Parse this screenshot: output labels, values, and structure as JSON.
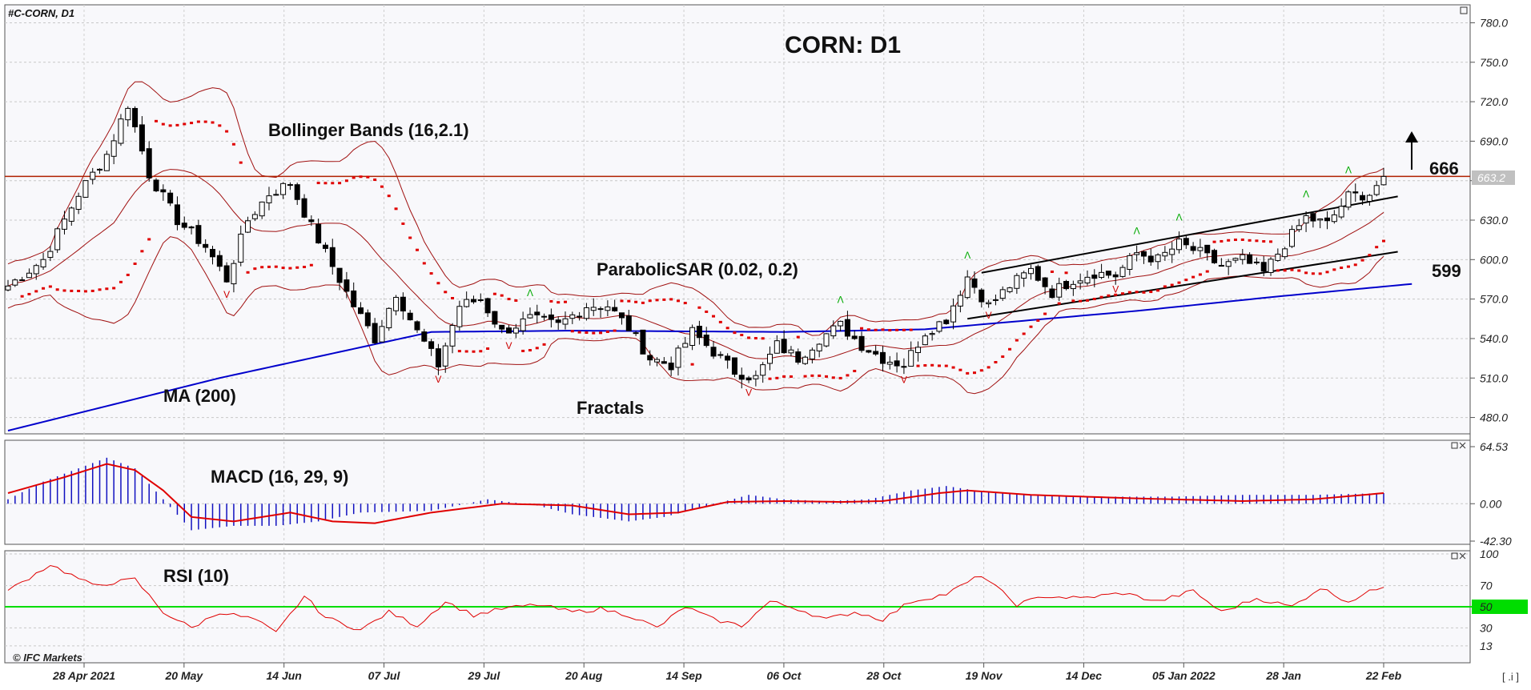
{
  "window": {
    "symbol_label": "#C-CORN, D1",
    "watermark": "© IFC Markets",
    "corner_label": "[ .i ]"
  },
  "annotations": {
    "title": "CORN: D1",
    "bollinger": "Bollinger Bands (16,2.1)",
    "sar": "ParabolicSAR (0.02, 0.2)",
    "ma": "MA (200)",
    "fractals": "Fractals",
    "macd": "MACD (16, 29, 9)",
    "rsi": "RSI (10)",
    "level_high": "666",
    "level_low": "599",
    "price_tag": "663.2"
  },
  "colors": {
    "candle_up": "#ffffff",
    "candle_down": "#000000",
    "bollinger": "#a01010",
    "sar": "#e00000",
    "ma200": "#0000cc",
    "macd_hist": "#1010c0",
    "macd_signal": "#e00000",
    "rsi_line": "#e00000",
    "rsi_50": "#00dd00",
    "resistance": "#b02000",
    "fractal_up": "#00aa00",
    "fractal_down": "#cc0000",
    "price_tag_bg": "#c0c0c0"
  },
  "chart_data": [
    {
      "type": "candlestick",
      "title": "CORN: D1",
      "symbol": "#C-CORN",
      "timeframe": "D1",
      "ylim": [
        470,
        790
      ],
      "y_ticks": [
        "780.0",
        "750.0",
        "720.0",
        "690.0",
        "660.0",
        "630.0",
        "600.0",
        "570.0",
        "540.0",
        "510.0",
        "480.0"
      ],
      "x_tick_labels": [
        "28 Apr 2021",
        "20 May",
        "14 Jun",
        "07 Jul",
        "29 Jul",
        "20 Aug",
        "14 Sep",
        "06 Oct",
        "28 Oct",
        "19 Nov",
        "14 Dec",
        "05 Jan 2022",
        "28 Jan",
        "22 Feb"
      ],
      "close_anchors": [
        [
          0,
          580
        ],
        [
          5,
          600
        ],
        [
          10,
          650
        ],
        [
          14,
          680
        ],
        [
          17,
          718
        ],
        [
          20,
          665
        ],
        [
          24,
          630
        ],
        [
          28,
          610
        ],
        [
          31,
          585
        ],
        [
          34,
          630
        ],
        [
          37,
          650
        ],
        [
          40,
          658
        ],
        [
          43,
          625
        ],
        [
          46,
          595
        ],
        [
          49,
          565
        ],
        [
          52,
          540
        ],
        [
          55,
          575
        ],
        [
          58,
          545
        ],
        [
          61,
          520
        ],
        [
          64,
          565
        ],
        [
          67,
          570
        ],
        [
          70,
          545
        ],
        [
          74,
          555
        ],
        [
          78,
          550
        ],
        [
          82,
          565
        ],
        [
          85,
          565
        ],
        [
          88,
          548
        ],
        [
          91,
          525
        ],
        [
          94,
          520
        ],
        [
          97,
          545
        ],
        [
          100,
          530
        ],
        [
          103,
          515
        ],
        [
          106,
          510
        ],
        [
          109,
          535
        ],
        [
          112,
          525
        ],
        [
          115,
          540
        ],
        [
          118,
          550
        ],
        [
          121,
          535
        ],
        [
          124,
          525
        ],
        [
          127,
          520
        ],
        [
          130,
          545
        ],
        [
          133,
          555
        ],
        [
          136,
          587
        ],
        [
          139,
          565
        ],
        [
          142,
          580
        ],
        [
          145,
          592
        ],
        [
          148,
          575
        ],
        [
          151,
          585
        ],
        [
          154,
          590
        ],
        [
          157,
          588
        ],
        [
          160,
          605
        ],
        [
          163,
          600
        ],
        [
          166,
          612
        ],
        [
          169,
          605
        ],
        [
          172,
          595
        ],
        [
          175,
          600
        ],
        [
          178,
          590
        ],
        [
          181,
          612
        ],
        [
          184,
          632
        ],
        [
          187,
          627
        ],
        [
          190,
          648
        ],
        [
          193,
          650
        ],
        [
          195,
          663.2
        ]
      ],
      "series": [
        {
          "name": "MA (200)",
          "anchors": [
            [
              0,
              470
            ],
            [
              30,
              510
            ],
            [
              60,
              545
            ],
            [
              80,
              546
            ],
            [
              110,
              545
            ],
            [
              130,
              547
            ],
            [
              160,
              561
            ],
            [
              180,
              572
            ],
            [
              200,
              582
            ]
          ]
        },
        {
          "name": "Bollinger Bands (16,2.1)"
        },
        {
          "name": "ParabolicSAR (0.02, 0.2)"
        },
        {
          "name": "Fractals"
        }
      ],
      "price_levels": [
        {
          "label": "666",
          "value": 666,
          "direction": "up"
        },
        {
          "label": "599",
          "value": 599
        }
      ],
      "resistance_line": 663.2,
      "last_price": 663.2
    },
    {
      "type": "line",
      "title": "MACD (16, 29, 9)",
      "y_ticks": [
        "64.53",
        "0.00",
        "-42.30"
      ],
      "ylim": [
        -42.3,
        64.53
      ],
      "histogram_anchors": [
        [
          0,
          5
        ],
        [
          5,
          25
        ],
        [
          10,
          40
        ],
        [
          14,
          52
        ],
        [
          18,
          40
        ],
        [
          22,
          5
        ],
        [
          26,
          -30
        ],
        [
          32,
          -25
        ],
        [
          38,
          -25
        ],
        [
          44,
          -20
        ],
        [
          50,
          -10
        ],
        [
          60,
          -8
        ],
        [
          68,
          5
        ],
        [
          75,
          -2
        ],
        [
          80,
          -12
        ],
        [
          88,
          -20
        ],
        [
          93,
          -15
        ],
        [
          98,
          -5
        ],
        [
          105,
          10
        ],
        [
          110,
          5
        ],
        [
          116,
          3
        ],
        [
          122,
          5
        ],
        [
          128,
          15
        ],
        [
          133,
          20
        ],
        [
          138,
          14
        ],
        [
          145,
          10
        ],
        [
          155,
          8
        ],
        [
          165,
          8
        ],
        [
          175,
          10
        ],
        [
          185,
          10
        ],
        [
          195,
          12
        ]
      ],
      "signal_anchors": [
        [
          0,
          12
        ],
        [
          8,
          30
        ],
        [
          14,
          45
        ],
        [
          18,
          38
        ],
        [
          22,
          15
        ],
        [
          26,
          -15
        ],
        [
          32,
          -20
        ],
        [
          40,
          -10
        ],
        [
          46,
          -20
        ],
        [
          52,
          -22
        ],
        [
          60,
          -10
        ],
        [
          70,
          0
        ],
        [
          80,
          -2
        ],
        [
          88,
          -12
        ],
        [
          95,
          -10
        ],
        [
          102,
          2
        ],
        [
          110,
          3
        ],
        [
          118,
          2
        ],
        [
          124,
          3
        ],
        [
          132,
          12
        ],
        [
          136,
          15
        ],
        [
          145,
          10
        ],
        [
          160,
          6
        ],
        [
          175,
          3
        ],
        [
          185,
          5
        ],
        [
          195,
          12
        ]
      ],
      "series": [
        {
          "name": "MACD"
        },
        {
          "name": "Signal"
        }
      ]
    },
    {
      "type": "line",
      "title": "RSI (10)",
      "y_ticks": [
        "100",
        "70",
        "50",
        "30",
        "13"
      ],
      "ylim": [
        0,
        100
      ],
      "anchors": [
        [
          0,
          65
        ],
        [
          6,
          90
        ],
        [
          12,
          70
        ],
        [
          18,
          76
        ],
        [
          22,
          45
        ],
        [
          26,
          30
        ],
        [
          30,
          45
        ],
        [
          35,
          38
        ],
        [
          38,
          25
        ],
        [
          42,
          60
        ],
        [
          45,
          40
        ],
        [
          50,
          28
        ],
        [
          54,
          45
        ],
        [
          58,
          32
        ],
        [
          62,
          55
        ],
        [
          66,
          42
        ],
        [
          70,
          48
        ],
        [
          75,
          52
        ],
        [
          80,
          45
        ],
        [
          84,
          48
        ],
        [
          88,
          42
        ],
        [
          92,
          30
        ],
        [
          96,
          50
        ],
        [
          100,
          38
        ],
        [
          104,
          32
        ],
        [
          108,
          55
        ],
        [
          112,
          48
        ],
        [
          116,
          38
        ],
        [
          120,
          45
        ],
        [
          124,
          38
        ],
        [
          128,
          55
        ],
        [
          133,
          62
        ],
        [
          138,
          80
        ],
        [
          143,
          52
        ],
        [
          147,
          60
        ],
        [
          152,
          58
        ],
        [
          158,
          63
        ],
        [
          163,
          55
        ],
        [
          168,
          65
        ],
        [
          172,
          45
        ],
        [
          177,
          58
        ],
        [
          182,
          50
        ],
        [
          186,
          68
        ],
        [
          190,
          55
        ],
        [
          195,
          70
        ]
      ],
      "reference_line": 50
    }
  ]
}
